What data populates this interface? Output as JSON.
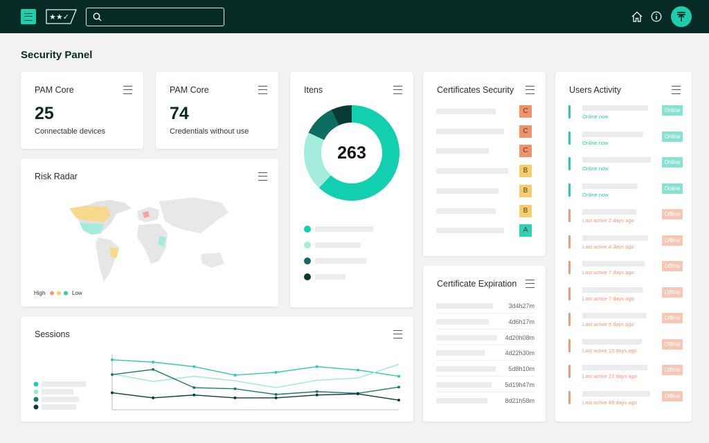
{
  "page_title": "Security Panel",
  "pam_cards": [
    {
      "title": "PAM Core",
      "value": 25,
      "label": "Connectable devices"
    },
    {
      "title": "PAM Core",
      "value": 74,
      "label": "Credentials without use"
    }
  ],
  "risk_radar": {
    "title": "Risk Radar",
    "legend_high": "High",
    "legend_low": "Low"
  },
  "items": {
    "title": "Itens",
    "total": 263,
    "chart": {
      "type": "pie",
      "values": [
        62,
        20,
        11,
        7
      ],
      "colors": [
        "#12cfb0",
        "#a4ecdc",
        "#0e6d63",
        "#083a33"
      ]
    }
  },
  "certificates": {
    "title": "Certificates Security",
    "grades": [
      {
        "label": "C",
        "color": "#f0936a"
      },
      {
        "label": "C",
        "color": "#f0936a"
      },
      {
        "label": "C",
        "color": "#f0936a"
      },
      {
        "label": "B",
        "color": "#f6cd6c"
      },
      {
        "label": "B",
        "color": "#f6cd6c"
      },
      {
        "label": "B",
        "color": "#f6cd6c"
      },
      {
        "label": "A",
        "color": "#2fd1b3"
      }
    ]
  },
  "expiration": {
    "title": "Certificate Expiration",
    "times": [
      "3d4h27m",
      "4d6h17m",
      "4d20h08m",
      "4d22h30m",
      "5d8h10m",
      "5d19h47m",
      "8d21h58m"
    ]
  },
  "users": {
    "title": "Users Activity",
    "rows": [
      {
        "status": "Online",
        "note": "Online now",
        "color": "#27c9ae"
      },
      {
        "status": "Online",
        "note": "Online now",
        "color": "#27c9ae"
      },
      {
        "status": "Online",
        "note": "Online now",
        "color": "#27c9ae"
      },
      {
        "status": "Online",
        "note": "Online now",
        "color": "#27c9ae"
      },
      {
        "status": "Offline",
        "note": "Last active 2 days ago",
        "color": "#f29a78"
      },
      {
        "status": "Offline",
        "note": "Last active 4 days ago",
        "color": "#f29a78"
      },
      {
        "status": "Offline",
        "note": "Last active 7 days ago",
        "color": "#f29a78"
      },
      {
        "status": "Offline",
        "note": "Last active 7 days ago",
        "color": "#f29a78"
      },
      {
        "status": "Offline",
        "note": "Last active 9 days ago",
        "color": "#f29a78"
      },
      {
        "status": "Offline",
        "note": "Last active 15 days ago",
        "color": "#f29a78"
      },
      {
        "status": "Offline",
        "note": "Last active 22 days ago",
        "color": "#f29a78"
      },
      {
        "status": "Offline",
        "note": "Last active 48 days ago",
        "color": "#f29a78"
      }
    ]
  },
  "sessions": {
    "title": "Sessions",
    "chart": {
      "type": "line",
      "ylim": [
        0,
        100
      ],
      "series": [
        {
          "color": "#2fc9b0",
          "values": [
            88,
            84,
            76,
            61,
            66,
            76,
            70,
            59
          ]
        },
        {
          "color": "#9de8d6",
          "values": [
            63,
            50,
            59,
            51,
            39,
            52,
            56,
            80
          ]
        },
        {
          "color": "#1b7a6e",
          "values": [
            62,
            71,
            39,
            37,
            27,
            32,
            29,
            40
          ]
        },
        {
          "color": "#0b3b33",
          "values": [
            30,
            21,
            26,
            21,
            21,
            26,
            28,
            17
          ]
        }
      ]
    }
  }
}
